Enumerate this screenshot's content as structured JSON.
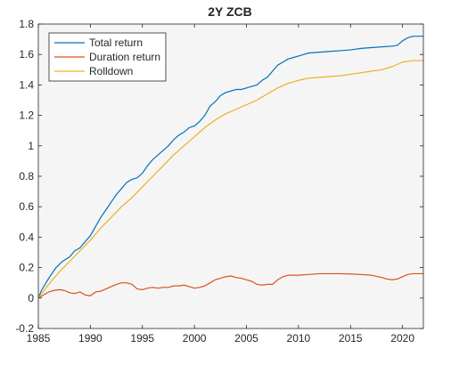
{
  "chart_data": {
    "type": "line",
    "title": "2Y ZCB",
    "xlabel": "",
    "ylabel": "",
    "xlim": [
      1985,
      2022
    ],
    "ylim": [
      -0.2,
      1.8
    ],
    "x_ticks": [
      1985,
      1990,
      1995,
      2000,
      2005,
      2010,
      2015,
      2020
    ],
    "y_ticks": [
      -0.2,
      0,
      0.2,
      0.4,
      0.6,
      0.8,
      1,
      1.2,
      1.4,
      1.6,
      1.8
    ],
    "y_tick_labels": [
      "-0.2",
      "0",
      "0.2",
      "0.4",
      "0.6",
      "0.8",
      "1",
      "1.2",
      "1.4",
      "1.6",
      "1.8"
    ],
    "grid": false,
    "legend_position": "top-left",
    "plot_background": "#f5f5f5",
    "series": [
      {
        "name": "Total return",
        "color": "#0072BD",
        "points": [
          [
            1985.0,
            0.0
          ],
          [
            1985.3,
            0.05
          ],
          [
            1986.0,
            0.13
          ],
          [
            1986.7,
            0.2
          ],
          [
            1987.3,
            0.24
          ],
          [
            1988.0,
            0.27
          ],
          [
            1988.5,
            0.31
          ],
          [
            1989.0,
            0.33
          ],
          [
            1989.5,
            0.37
          ],
          [
            1990.0,
            0.41
          ],
          [
            1990.5,
            0.47
          ],
          [
            1991.0,
            0.53
          ],
          [
            1991.5,
            0.58
          ],
          [
            1992.0,
            0.63
          ],
          [
            1992.5,
            0.68
          ],
          [
            1993.0,
            0.72
          ],
          [
            1993.5,
            0.76
          ],
          [
            1994.0,
            0.78
          ],
          [
            1994.5,
            0.79
          ],
          [
            1995.0,
            0.82
          ],
          [
            1995.5,
            0.87
          ],
          [
            1996.0,
            0.91
          ],
          [
            1996.5,
            0.94
          ],
          [
            1997.0,
            0.97
          ],
          [
            1997.5,
            1.0
          ],
          [
            1998.0,
            1.04
          ],
          [
            1998.5,
            1.07
          ],
          [
            1999.0,
            1.09
          ],
          [
            1999.5,
            1.12
          ],
          [
            2000.0,
            1.13
          ],
          [
            2000.5,
            1.16
          ],
          [
            2001.0,
            1.2
          ],
          [
            2001.5,
            1.26
          ],
          [
            2002.0,
            1.29
          ],
          [
            2002.5,
            1.33
          ],
          [
            2003.0,
            1.35
          ],
          [
            2003.5,
            1.36
          ],
          [
            2004.0,
            1.37
          ],
          [
            2004.5,
            1.37
          ],
          [
            2005.0,
            1.38
          ],
          [
            2005.5,
            1.39
          ],
          [
            2006.0,
            1.4
          ],
          [
            2006.5,
            1.43
          ],
          [
            2007.0,
            1.45
          ],
          [
            2007.5,
            1.49
          ],
          [
            2008.0,
            1.53
          ],
          [
            2008.5,
            1.55
          ],
          [
            2009.0,
            1.57
          ],
          [
            2009.5,
            1.58
          ],
          [
            2010.0,
            1.59
          ],
          [
            2010.5,
            1.6
          ],
          [
            2011.0,
            1.61
          ],
          [
            2012.0,
            1.615
          ],
          [
            2013.0,
            1.62
          ],
          [
            2014.0,
            1.625
          ],
          [
            2015.0,
            1.63
          ],
          [
            2016.0,
            1.64
          ],
          [
            2017.0,
            1.645
          ],
          [
            2018.0,
            1.65
          ],
          [
            2019.0,
            1.655
          ],
          [
            2019.5,
            1.66
          ],
          [
            2020.0,
            1.69
          ],
          [
            2020.5,
            1.71
          ],
          [
            2021.0,
            1.72
          ],
          [
            2022.0,
            1.72
          ]
        ]
      },
      {
        "name": "Duration return",
        "color": "#D95319",
        "points": [
          [
            1985.0,
            0.0
          ],
          [
            1985.5,
            0.02
          ],
          [
            1986.0,
            0.04
          ],
          [
            1986.5,
            0.05
          ],
          [
            1987.0,
            0.055
          ],
          [
            1987.5,
            0.05
          ],
          [
            1988.0,
            0.035
          ],
          [
            1988.5,
            0.03
          ],
          [
            1989.0,
            0.04
          ],
          [
            1989.5,
            0.02
          ],
          [
            1990.0,
            0.015
          ],
          [
            1990.5,
            0.04
          ],
          [
            1991.0,
            0.045
          ],
          [
            1991.5,
            0.06
          ],
          [
            1992.0,
            0.075
          ],
          [
            1992.5,
            0.09
          ],
          [
            1993.0,
            0.1
          ],
          [
            1993.5,
            0.1
          ],
          [
            1994.0,
            0.09
          ],
          [
            1994.5,
            0.06
          ],
          [
            1995.0,
            0.055
          ],
          [
            1995.5,
            0.065
          ],
          [
            1996.0,
            0.07
          ],
          [
            1996.5,
            0.065
          ],
          [
            1997.0,
            0.07
          ],
          [
            1997.5,
            0.07
          ],
          [
            1998.0,
            0.08
          ],
          [
            1998.5,
            0.08
          ],
          [
            1999.0,
            0.085
          ],
          [
            1999.5,
            0.075
          ],
          [
            2000.0,
            0.065
          ],
          [
            2000.5,
            0.07
          ],
          [
            2001.0,
            0.08
          ],
          [
            2001.5,
            0.1
          ],
          [
            2002.0,
            0.12
          ],
          [
            2002.5,
            0.13
          ],
          [
            2003.0,
            0.14
          ],
          [
            2003.5,
            0.145
          ],
          [
            2004.0,
            0.135
          ],
          [
            2004.5,
            0.13
          ],
          [
            2005.0,
            0.12
          ],
          [
            2005.5,
            0.11
          ],
          [
            2006.0,
            0.09
          ],
          [
            2006.5,
            0.085
          ],
          [
            2007.0,
            0.09
          ],
          [
            2007.5,
            0.09
          ],
          [
            2008.0,
            0.12
          ],
          [
            2008.5,
            0.14
          ],
          [
            2009.0,
            0.15
          ],
          [
            2009.5,
            0.15
          ],
          [
            2010.0,
            0.15
          ],
          [
            2011.0,
            0.155
          ],
          [
            2012.0,
            0.16
          ],
          [
            2013.0,
            0.16
          ],
          [
            2014.0,
            0.16
          ],
          [
            2015.0,
            0.158
          ],
          [
            2016.0,
            0.155
          ],
          [
            2017.0,
            0.15
          ],
          [
            2018.0,
            0.135
          ],
          [
            2018.5,
            0.125
          ],
          [
            2019.0,
            0.12
          ],
          [
            2019.5,
            0.125
          ],
          [
            2020.0,
            0.14
          ],
          [
            2020.5,
            0.155
          ],
          [
            2021.0,
            0.16
          ],
          [
            2022.0,
            0.16
          ]
        ]
      },
      {
        "name": "Rolldown",
        "color": "#EDB120",
        "points": [
          [
            1985.0,
            0.0
          ],
          [
            1986.0,
            0.09
          ],
          [
            1987.0,
            0.17
          ],
          [
            1988.0,
            0.24
          ],
          [
            1989.0,
            0.31
          ],
          [
            1990.0,
            0.38
          ],
          [
            1991.0,
            0.46
          ],
          [
            1992.0,
            0.53
          ],
          [
            1993.0,
            0.6
          ],
          [
            1994.0,
            0.66
          ],
          [
            1995.0,
            0.73
          ],
          [
            1996.0,
            0.8
          ],
          [
            1997.0,
            0.87
          ],
          [
            1998.0,
            0.94
          ],
          [
            1999.0,
            1.0
          ],
          [
            2000.0,
            1.06
          ],
          [
            2001.0,
            1.12
          ],
          [
            2002.0,
            1.17
          ],
          [
            2003.0,
            1.21
          ],
          [
            2004.0,
            1.24
          ],
          [
            2005.0,
            1.27
          ],
          [
            2006.0,
            1.3
          ],
          [
            2007.0,
            1.34
          ],
          [
            2008.0,
            1.38
          ],
          [
            2009.0,
            1.41
          ],
          [
            2010.0,
            1.43
          ],
          [
            2011.0,
            1.445
          ],
          [
            2012.0,
            1.45
          ],
          [
            2013.0,
            1.455
          ],
          [
            2014.0,
            1.46
          ],
          [
            2015.0,
            1.47
          ],
          [
            2016.0,
            1.48
          ],
          [
            2017.0,
            1.49
          ],
          [
            2018.0,
            1.5
          ],
          [
            2019.0,
            1.52
          ],
          [
            2020.0,
            1.55
          ],
          [
            2021.0,
            1.56
          ],
          [
            2022.0,
            1.56
          ]
        ]
      }
    ]
  }
}
